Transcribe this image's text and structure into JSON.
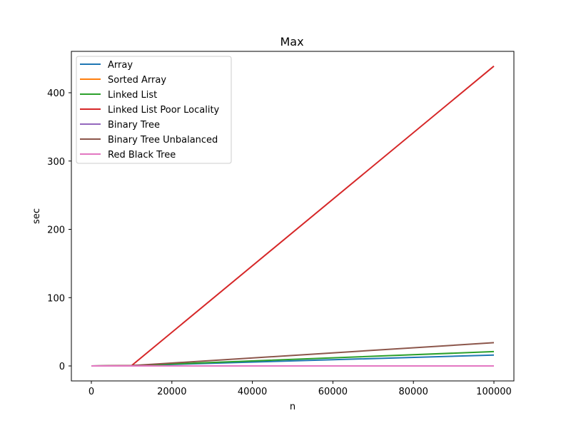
{
  "chart_data": {
    "type": "line",
    "title": "Max",
    "xlabel": "n",
    "ylabel": "sec",
    "xlim": [
      -5000,
      105000
    ],
    "ylim": [
      -22,
      461
    ],
    "x_ticks": [
      0,
      20000,
      40000,
      60000,
      80000,
      100000
    ],
    "x_tick_labels": [
      "0",
      "20000",
      "40000",
      "60000",
      "80000",
      "100000"
    ],
    "y_ticks": [
      0,
      100,
      200,
      300,
      400
    ],
    "y_tick_labels": [
      "0",
      "100",
      "200",
      "300",
      "400"
    ],
    "grid": false,
    "legend_position": "upper left",
    "x": [
      10,
      10000,
      100000
    ],
    "series": [
      {
        "name": "Array",
        "color": "#1f77b4",
        "values": [
          0,
          0.5,
          16
        ]
      },
      {
        "name": "Sorted Array",
        "color": "#ff7f0e",
        "values": [
          0,
          0,
          0
        ]
      },
      {
        "name": "Linked List",
        "color": "#2ca02c",
        "values": [
          0,
          0.5,
          21
        ]
      },
      {
        "name": "Linked List Poor Locality",
        "color": "#d62728",
        "values": [
          0,
          0.5,
          439
        ]
      },
      {
        "name": "Binary Tree",
        "color": "#9467bd",
        "values": [
          0,
          0,
          0
        ]
      },
      {
        "name": "Binary Tree Unbalanced",
        "color": "#8c564b",
        "values": [
          0,
          0.5,
          34
        ]
      },
      {
        "name": "Red Black Tree",
        "color": "#e377c2",
        "values": [
          0,
          0,
          0
        ]
      }
    ]
  }
}
